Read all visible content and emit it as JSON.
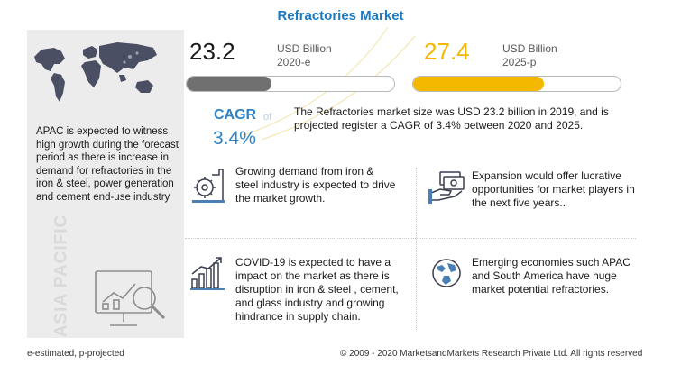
{
  "title": "Refractories Market",
  "left_panel": {
    "description": "APAC is expected to witness high growth during the forecast period as there is increase in demand for refractories in the iron & steel, power generation and cement end-use industry",
    "region_label": "ASIA PACIFIC",
    "icons": [
      "world-map-icon",
      "analysis-magnifier-icon"
    ]
  },
  "stats": {
    "value_2020": "23.2",
    "unit_2020": "USD Billion",
    "year_2020": "2020-e",
    "value_2025": "27.4",
    "unit_2025": "USD Billion",
    "year_2025": "2025-p",
    "bar_2020_fraction": 0.41,
    "bar_2025_fraction": 0.63
  },
  "cagr": {
    "label": "CAGR",
    "of": "of",
    "value": "3.4%"
  },
  "summary": "The Refractories market size was USD 23.2 billion in 2019, and is projected register a CAGR of 3.4% between 2020 and 2025.",
  "insights": [
    {
      "icon": "industry-gear-icon",
      "text": "Growing demand from iron & steel industry is expected to drive the market growth."
    },
    {
      "icon": "money-hand-icon",
      "text": "Expansion would offer lucrative opportunities for market players in the next five years.."
    },
    {
      "icon": "growth-chart-icon",
      "text": "COVID-19 is expected to have a impact on the market as there is disruption in iron & steel , cement, and glass industry and growing hindrance in supply chain."
    },
    {
      "icon": "globe-icon",
      "text": "Emerging economies such APAC and South America have huge market potential refractories."
    }
  ],
  "footer": {
    "note": "e-estimated, p-projected",
    "copyright": "© 2009 - 2020 MarketsandMarkets Research Private Ltd. All rights reserved"
  },
  "colors": {
    "title": "#1a7bc4",
    "accent_blue": "#2f82c4",
    "bar_2020": "#707070",
    "bar_2025": "#f5b800",
    "panel": "#ececec"
  }
}
